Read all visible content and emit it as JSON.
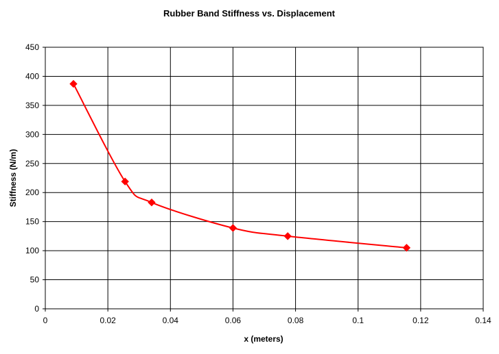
{
  "chart_data": {
    "type": "line",
    "title": "Rubber Band Stiffness vs. Displacement",
    "xlabel": "x (meters)",
    "ylabel": "Stiffness (N/m)",
    "xlim": [
      0,
      0.14
    ],
    "ylim": [
      0,
      450
    ],
    "x_ticks": [
      "0",
      "0.02",
      "0.04",
      "0.06",
      "0.08",
      "0.1",
      "0.12",
      "0.14"
    ],
    "y_ticks": [
      "0",
      "50",
      "100",
      "150",
      "200",
      "250",
      "300",
      "350",
      "400",
      "450"
    ],
    "grid": true,
    "legend": "none",
    "series": [
      {
        "color": "#ff0000",
        "marker": "diamond",
        "smoothed": true,
        "x": [
          0.009,
          0.0255,
          0.034,
          0.06,
          0.0775,
          0.1155
        ],
        "y": [
          387,
          219,
          183,
          139,
          125,
          105
        ]
      }
    ]
  }
}
